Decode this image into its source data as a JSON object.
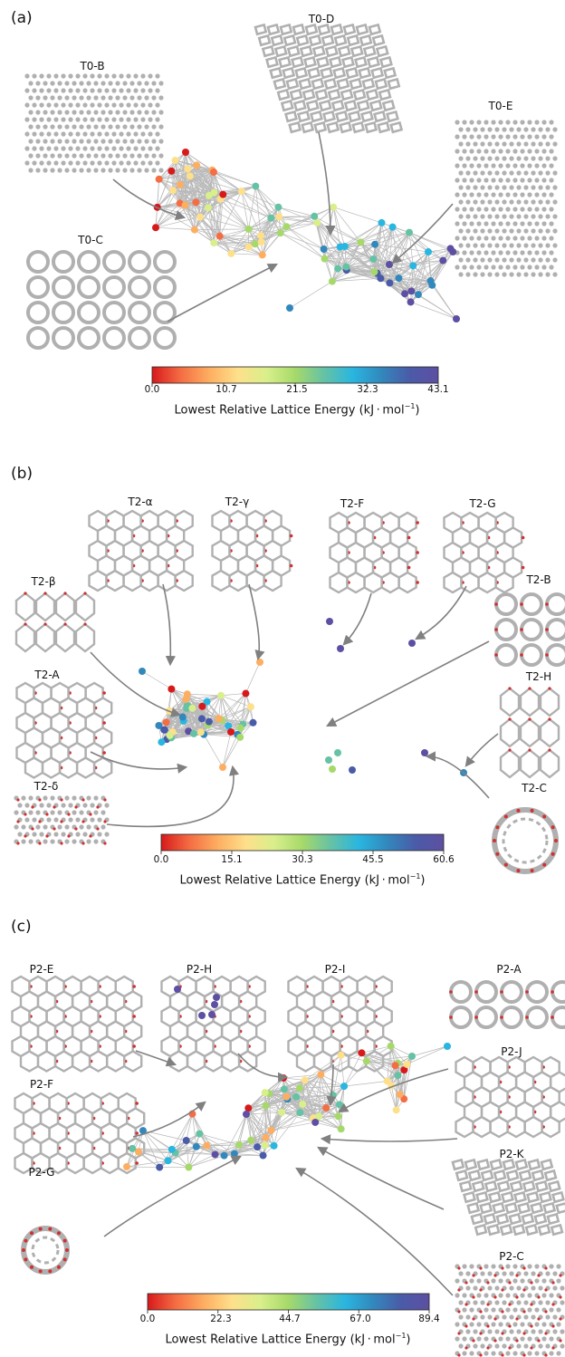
{
  "panels": {
    "a": {
      "label": "(a)",
      "structures": [
        "T0-B",
        "T0-D",
        "T0-E",
        "T0-C"
      ],
      "colorbar": {
        "ticks": [
          "0.0",
          "10.7",
          "21.5",
          "32.3",
          "43.1"
        ],
        "min": 0.0,
        "max": 43.1,
        "title_prefix": "Lowest Relative Lattice Energy (kJ",
        "title_unit": "mol",
        "title_exp": "−1",
        "title_suffix": ")"
      }
    },
    "b": {
      "label": "(b)",
      "structures": [
        "T2-α",
        "T2-γ",
        "T2-F",
        "T2-G",
        "T2-β",
        "T2-B",
        "T2-A",
        "T2-H",
        "T2-δ",
        "T2-C"
      ],
      "colorbar": {
        "ticks": [
          "0.0",
          "15.1",
          "30.3",
          "45.5",
          "60.6"
        ],
        "min": 0.0,
        "max": 60.6,
        "title_prefix": "Lowest Relative Lattice Energy (kJ",
        "title_unit": "mol",
        "title_exp": "−1",
        "title_suffix": ")"
      }
    },
    "c": {
      "label": "(c)",
      "structures": [
        "P2-E",
        "P2-H",
        "P2-I",
        "P2-A",
        "P2-J",
        "P2-F",
        "P2-K",
        "P2-G",
        "P2-C"
      ],
      "colorbar": {
        "ticks": [
          "0.0",
          "22.3",
          "44.7",
          "67.0",
          "89.4"
        ],
        "min": 0.0,
        "max": 89.4,
        "title_prefix": "Lowest Relative Lattice Energy (kJ",
        "title_unit": "mol",
        "title_exp": "−1",
        "title_suffix": ")"
      }
    }
  },
  "colors": {
    "cmap": [
      "#d7191c",
      "#f46d43",
      "#fdae61",
      "#fee08b",
      "#d9ef8b",
      "#a6d96a",
      "#66c2a5",
      "#29b6e0",
      "#3288bd",
      "#4a5ba8",
      "#5e4fa2"
    ],
    "edge": "#b8b8b8",
    "arrow": "#808080",
    "crystal": "#b0b0b0",
    "oxygen": "#d03030"
  }
}
